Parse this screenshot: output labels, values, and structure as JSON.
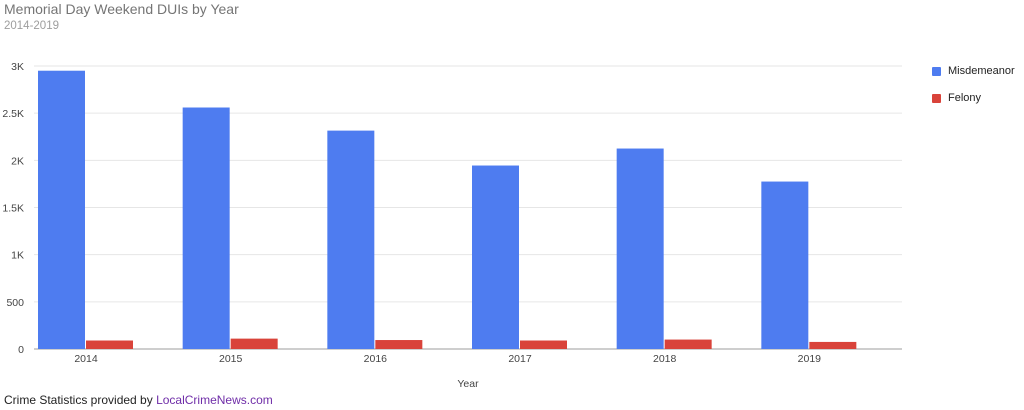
{
  "chart_data": {
    "type": "bar",
    "title": "Memorial Day Weekend DUIs by Year",
    "subtitle": "2014-2019",
    "xlabel": "Year",
    "ylabel": "",
    "categories": [
      "2014",
      "2015",
      "2016",
      "2017",
      "2018",
      "2019"
    ],
    "series": [
      {
        "name": "Misdemeanor",
        "color": "#4e7cf0",
        "values": [
          2950,
          2560,
          2315,
          1945,
          2125,
          1775
        ]
      },
      {
        "name": "Felony",
        "color": "#d9433a",
        "values": [
          90,
          110,
          95,
          90,
          100,
          75
        ]
      }
    ],
    "ylim": [
      0,
      3000
    ],
    "yticks": [
      0,
      500,
      1000,
      1500,
      2000,
      2500,
      3000
    ],
    "ytick_labels": [
      "0",
      "500",
      "1K",
      "1.5K",
      "2K",
      "2.5K",
      "3K"
    ],
    "grid": true,
    "legend": "right"
  },
  "footer": {
    "text": "Crime Statistics provided by ",
    "link": "LocalCrimeNews.com"
  }
}
